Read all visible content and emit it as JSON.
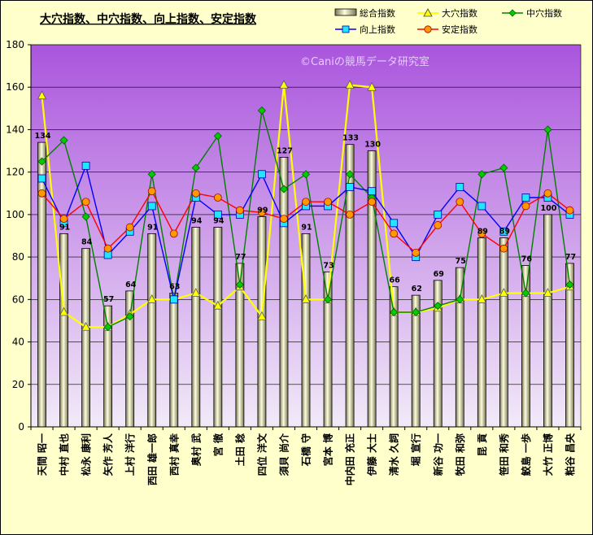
{
  "chart_data": {
    "type": "bar",
    "title": "大穴指数、中穴指数、向上指数、安定指数",
    "watermark": "©Caniの競馬データ研究室",
    "ylim": [
      0,
      180
    ],
    "yticks": [
      0,
      20,
      40,
      60,
      80,
      100,
      120,
      140,
      160,
      180
    ],
    "grid": true,
    "legend_position": "top-right",
    "categories": [
      "天間 昭一",
      "中村 直也",
      "松永 康利",
      "矢作 芳人",
      "上村 洋行",
      "西田 雄一郎",
      "西村 真幸",
      "奥村 武",
      "宮 徹",
      "土田 稔",
      "四位 洋文",
      "須貝 尚介",
      "石橋 守",
      "宮本 博",
      "中内田 充正",
      "伊藤 大士",
      "清水 久詞",
      "堀 宣行",
      "新谷 功一",
      "牧田 和弥",
      "昆 貢",
      "笹田 和秀",
      "鮫島 一歩",
      "大竹 正博",
      "粕谷 昌央"
    ],
    "series": [
      {
        "name": "総合指数",
        "type": "bar",
        "color": "#eeeeaa",
        "values": [
          134,
          91,
          84,
          57,
          64,
          91,
          63,
          94,
          94,
          77,
          99,
          127,
          91,
          73,
          133,
          130,
          66,
          62,
          69,
          75,
          89,
          89,
          76,
          100,
          77
        ]
      },
      {
        "name": "大穴指数",
        "type": "line",
        "color": "#ffff00",
        "marker": "triangle",
        "values": [
          156,
          54,
          47,
          47,
          53,
          60,
          60,
          63,
          57,
          66,
          52,
          161,
          60,
          60,
          161,
          160,
          54,
          54,
          56,
          60,
          60,
          63,
          63,
          63,
          66
        ]
      },
      {
        "name": "中穴指数",
        "type": "line",
        "color": "#008000",
        "marker": "diamond",
        "values": [
          125,
          135,
          99,
          47,
          52,
          119,
          60,
          122,
          137,
          67,
          149,
          112,
          119,
          60,
          119,
          108,
          54,
          54,
          57,
          60,
          119,
          122,
          63,
          140,
          67
        ]
      },
      {
        "name": "向上指数",
        "type": "line",
        "color": "#0000ff",
        "marker": "square",
        "values": [
          117,
          96,
          123,
          81,
          92,
          104,
          60,
          108,
          100,
          100,
          119,
          96,
          104,
          104,
          113,
          111,
          96,
          80,
          100,
          113,
          104,
          92,
          108,
          108,
          100
        ]
      },
      {
        "name": "安定指数",
        "type": "line",
        "color": "#ff0000",
        "marker": "circle",
        "values": [
          110,
          98,
          106,
          84,
          94,
          111,
          91,
          110,
          108,
          102,
          101,
          98,
          106,
          106,
          100,
          106,
          91,
          82,
          95,
          106,
          91,
          84,
          104,
          110,
          102
        ]
      }
    ]
  },
  "legend": {
    "items": [
      {
        "label": "総合指数"
      },
      {
        "label": "大穴指数"
      },
      {
        "label": "中穴指数"
      },
      {
        "label": "向上指数"
      },
      {
        "label": "安定指数"
      }
    ]
  }
}
